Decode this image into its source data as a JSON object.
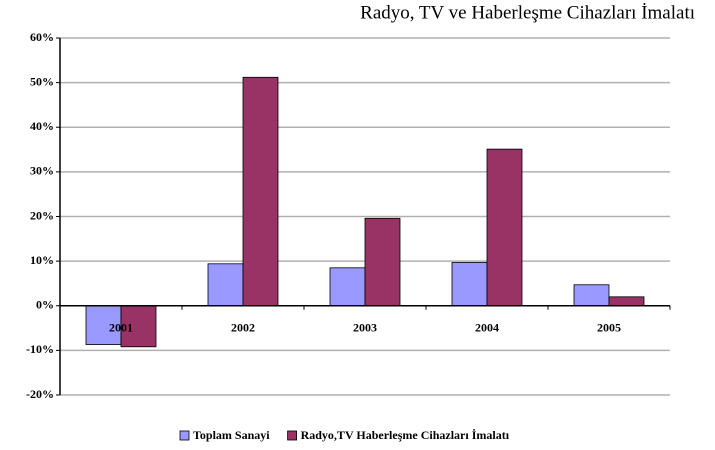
{
  "chart_data": {
    "type": "bar",
    "title": "Radyo, TV ve Haberleşme Cihazları İmalatı",
    "categories": [
      "2001",
      "2002",
      "2003",
      "2004",
      "2005"
    ],
    "series": [
      {
        "name": "Toplam Sanayi",
        "color": "#9999ff",
        "values": [
          -8.7,
          9.4,
          8.5,
          9.7,
          4.7
        ]
      },
      {
        "name": "Radyo,TV Haberleşme Cihazları İmalatı",
        "color": "#993366",
        "values": [
          -9.2,
          51.2,
          19.6,
          35.1,
          2.0
        ]
      }
    ],
    "ylim": [
      -20,
      60
    ],
    "yticks": [
      {
        "value": -20,
        "label": "-20%"
      },
      {
        "value": -10,
        "label": "-10%"
      },
      {
        "value": 0,
        "label": "0%"
      },
      {
        "value": 10,
        "label": "10%"
      },
      {
        "value": 20,
        "label": "20%"
      },
      {
        "value": 30,
        "label": "30%"
      },
      {
        "value": 40,
        "label": "40%"
      },
      {
        "value": 50,
        "label": "50%"
      },
      {
        "value": 60,
        "label": "60%"
      }
    ],
    "grid": true,
    "legend": "bottom"
  }
}
